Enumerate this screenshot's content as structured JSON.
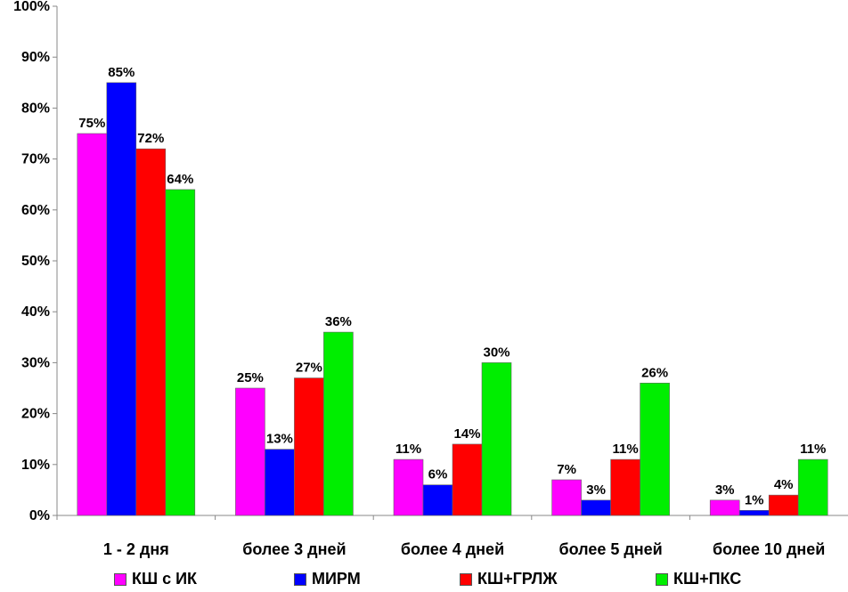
{
  "chart_data": {
    "type": "bar",
    "categories": [
      "1 - 2 дня",
      "более 3 дней",
      "более 4 дней",
      "более 5 дней",
      "более 10 дней"
    ],
    "series": [
      {
        "name": "КШ с ИК",
        "color": "#ff00ff",
        "values": [
          75,
          25,
          11,
          7,
          3
        ]
      },
      {
        "name": "МИРМ",
        "color": "#0000ff",
        "values": [
          85,
          13,
          6,
          3,
          1
        ]
      },
      {
        "name": "КШ+ГРЛЖ",
        "color": "#ff0000",
        "values": [
          72,
          27,
          14,
          11,
          4
        ]
      },
      {
        "name": "КШ+ПКС",
        "color": "#00ee00",
        "values": [
          64,
          36,
          30,
          26,
          11
        ]
      }
    ],
    "ylim": [
      0,
      100
    ],
    "y_ticks": [
      "0%",
      "10%",
      "20%",
      "30%",
      "40%",
      "50%",
      "60%",
      "70%",
      "80%",
      "90%",
      "100%"
    ],
    "value_suffix": "%",
    "grid": false,
    "legend_position": "bottom"
  }
}
